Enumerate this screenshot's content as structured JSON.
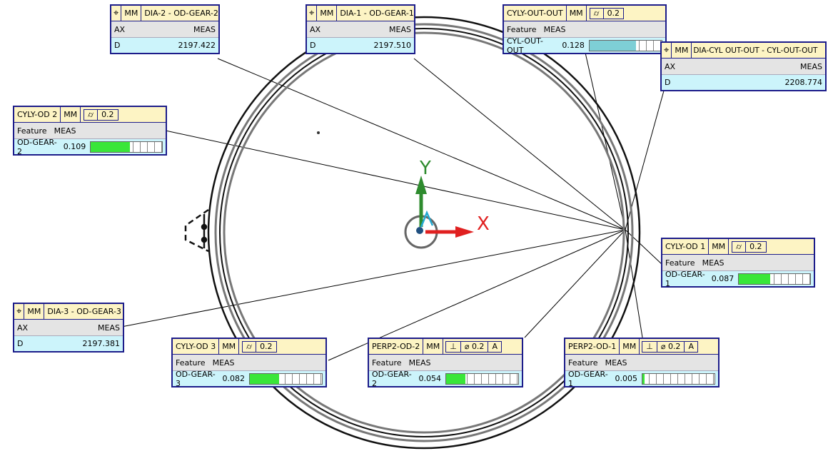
{
  "axes": {
    "x_label": "X",
    "y_label": "Y"
  },
  "colors": {
    "x_axis": "#e02020",
    "y_axis": "#2e8b2e",
    "bar_fill": "#39e639",
    "bar_fill_teal": "#7ecfd6"
  },
  "dia_boxes": [
    {
      "id": "dia2",
      "unit": "MM",
      "title": "DIA-2 - OD-GEAR-2",
      "ax": "AX",
      "meas": "MEAS",
      "d": "D",
      "value": "2197.422"
    },
    {
      "id": "dia1",
      "unit": "MM",
      "title": "DIA-1 - OD-GEAR-1",
      "ax": "AX",
      "meas": "MEAS",
      "d": "D",
      "value": "2197.510"
    },
    {
      "id": "diacyl",
      "unit": "MM",
      "title": "DIA-CYL OUT-OUT - CYL-OUT-OUT",
      "ax": "AX",
      "meas": "MEAS",
      "d": "D",
      "value": "2208.774"
    },
    {
      "id": "dia3",
      "unit": "MM",
      "title": "DIA-3 - OD-GEAR-3",
      "ax": "AX",
      "meas": "MEAS",
      "d": "D",
      "value": "2197.381"
    }
  ],
  "cyl_boxes": [
    {
      "id": "cylout",
      "name": "CYLY-OUT-OUT",
      "unit": "MM",
      "tol": "0.2",
      "feature": "Feature",
      "meas": "MEAS",
      "feat_name": "CYL-OUT-OUT",
      "value": "0.128",
      "ratio": 0.64
    },
    {
      "id": "cylod2",
      "name": "CYLY-OD 2",
      "unit": "MM",
      "tol": "0.2",
      "feature": "Feature",
      "meas": "MEAS",
      "feat_name": "OD-GEAR-2",
      "value": "0.109",
      "ratio": 0.545
    },
    {
      "id": "cylod1",
      "name": "CYLY-OD 1",
      "unit": "MM",
      "tol": "0.2",
      "feature": "Feature",
      "meas": "MEAS",
      "feat_name": "OD-GEAR-1",
      "value": "0.087",
      "ratio": 0.435
    },
    {
      "id": "cylod3",
      "name": "CYLY-OD 3",
      "unit": "MM",
      "tol": "0.2",
      "feature": "Feature",
      "meas": "MEAS",
      "feat_name": "OD-GEAR-3",
      "value": "0.082",
      "ratio": 0.41
    }
  ],
  "perp_boxes": [
    {
      "id": "perp2",
      "name": "PERP2-OD-2",
      "unit": "MM",
      "tol": "0.2",
      "datum": "A",
      "feature": "Feature",
      "meas": "MEAS",
      "feat_name": "OD-GEAR-2",
      "value": "0.054",
      "ratio": 0.27
    },
    {
      "id": "perp1",
      "name": "PERP2-OD-1",
      "unit": "MM",
      "tol": "0.2",
      "datum": "A",
      "feature": "Feature",
      "meas": "MEAS",
      "feat_name": "OD-GEAR-1",
      "value": "0.005",
      "ratio": 0.025
    }
  ]
}
